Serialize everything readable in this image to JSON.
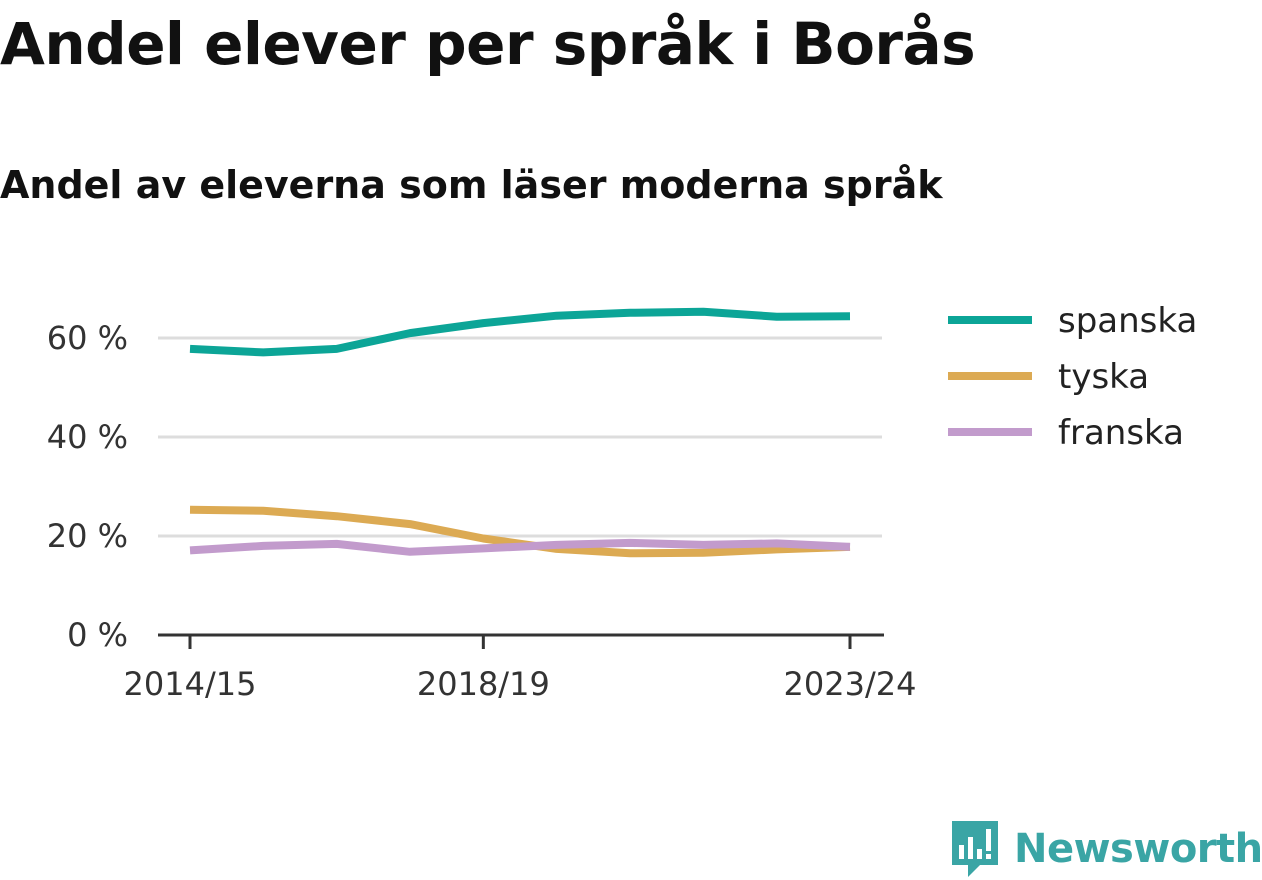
{
  "title": "Andel elever per språk i Borås",
  "subtitle": "Andel av eleverna som läser moderna språk",
  "brand": {
    "name": "Newsworthy",
    "icon": "newsworthy-logo-icon",
    "color": "#3aa5a5"
  },
  "chart_data": {
    "type": "line",
    "x": [
      "2014/15",
      "2015/16",
      "2016/17",
      "2017/18",
      "2018/19",
      "2019/20",
      "2020/21",
      "2021/22",
      "2022/23",
      "2023/24"
    ],
    "x_tick_labels": [
      "2014/15",
      "2018/19",
      "2023/24"
    ],
    "y_ticks": [
      0,
      20,
      40,
      60
    ],
    "y_tick_labels": [
      "0 %",
      "20 %",
      "40 %",
      "60 %"
    ],
    "ylim": [
      0,
      65
    ],
    "grid": true,
    "legend_position": "right",
    "series": [
      {
        "name": "spanska",
        "color": "#0ca597",
        "values": [
          57.8,
          57.1,
          57.8,
          61.0,
          63.0,
          64.5,
          65.1,
          65.3,
          64.3,
          64.4
        ]
      },
      {
        "name": "tyska",
        "color": "#dcaa53",
        "values": [
          25.3,
          25.1,
          24.0,
          22.4,
          19.5,
          17.4,
          16.5,
          16.6,
          17.3,
          17.8
        ]
      },
      {
        "name": "franska",
        "color": "#c29bcc",
        "values": [
          17.1,
          18.0,
          18.4,
          16.8,
          17.5,
          18.2,
          18.6,
          18.2,
          18.5,
          17.8
        ]
      }
    ]
  }
}
